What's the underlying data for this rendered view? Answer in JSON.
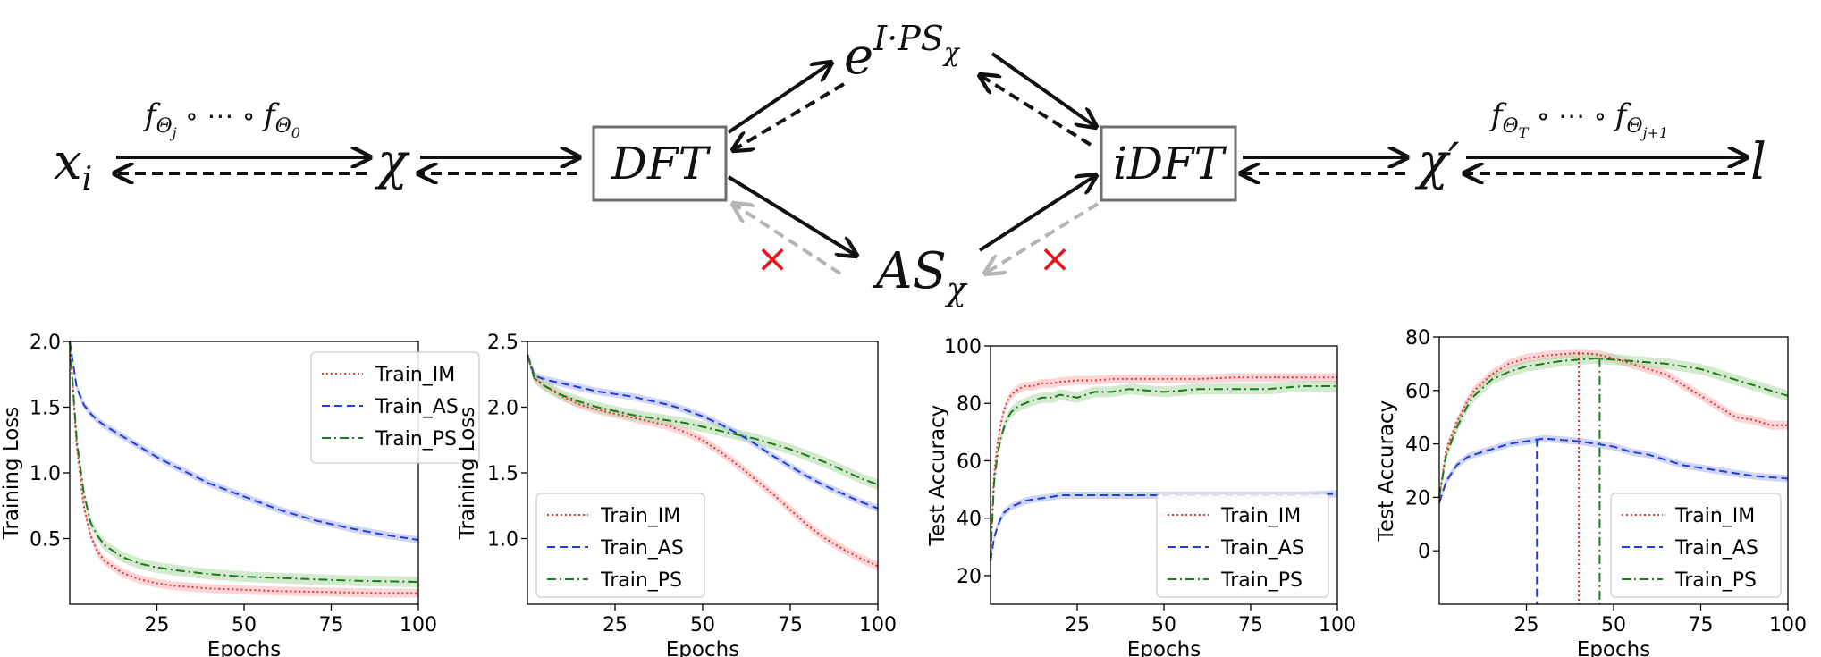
{
  "diagram": {
    "nodes": {
      "x_i": {
        "base": "x",
        "sub": "i"
      },
      "chi": {
        "base": "χ"
      },
      "dft": {
        "label": "DFT"
      },
      "exp_ps": {
        "base": "e",
        "sup": "I·PS",
        "supsub": "χ"
      },
      "as_chi": {
        "base": "AS",
        "sub": "χ"
      },
      "idft": {
        "label": "iDFT"
      },
      "chi_prime": {
        "base": "χ′"
      },
      "l": {
        "base": "l"
      }
    },
    "left_func": {
      "f": "f",
      "sub1": "Θ",
      "subsub1": "j",
      "mid": " ∘ ⋯ ∘ ",
      "sub2": "Θ",
      "subsub2": "0"
    },
    "right_func": {
      "f": "f",
      "sub1": "Θ",
      "subsub1": "T",
      "mid": " ∘ ⋯ ∘ ",
      "sub2": "Θ",
      "subsub2": "j+1"
    },
    "blocked_mark": "×",
    "colors": {
      "arrow": "#111111",
      "blocked": "#b5b5b5",
      "cross": "#e8141b",
      "box_border": "#6e6e6e"
    }
  },
  "series_styles": [
    {
      "name": "Train_IM",
      "color": "#e8332f",
      "dash": "2,3",
      "band": "#f7b3b8"
    },
    {
      "name": "Train_AS",
      "color": "#1f3fd8",
      "dash": "9,5",
      "band": "#aab2f3"
    },
    {
      "name": "Train_PS",
      "color": "#1d7a1d",
      "dash": "10,4,2,4",
      "band": "#aed8a6"
    }
  ],
  "chart_data": [
    {
      "type": "line",
      "ylabel": "Training Loss",
      "xlabel": "Epochs",
      "xlim": [
        0,
        100
      ],
      "ylim": [
        0,
        2.0
      ],
      "xticks": [
        "25",
        "50",
        "75",
        "100"
      ],
      "yticks": [
        "0.5",
        "1.0",
        "1.5",
        "2.0"
      ],
      "legend": "top-right",
      "series": [
        {
          "name": "Train_IM",
          "x": [
            0,
            2,
            4,
            6,
            8,
            10,
            15,
            20,
            25,
            30,
            40,
            50,
            60,
            70,
            80,
            90,
            100
          ],
          "values": [
            2.0,
            1.2,
            0.75,
            0.52,
            0.4,
            0.33,
            0.24,
            0.19,
            0.16,
            0.14,
            0.12,
            0.11,
            0.1,
            0.095,
            0.09,
            0.085,
            0.085
          ]
        },
        {
          "name": "Train_AS",
          "x": [
            0,
            2,
            4,
            6,
            8,
            10,
            15,
            20,
            25,
            30,
            40,
            50,
            60,
            70,
            80,
            90,
            100
          ],
          "values": [
            2.0,
            1.65,
            1.52,
            1.45,
            1.4,
            1.36,
            1.28,
            1.2,
            1.12,
            1.05,
            0.92,
            0.82,
            0.72,
            0.64,
            0.58,
            0.53,
            0.49
          ]
        },
        {
          "name": "Train_PS",
          "x": [
            0,
            2,
            4,
            6,
            8,
            10,
            15,
            20,
            25,
            30,
            40,
            50,
            60,
            70,
            80,
            90,
            100
          ],
          "values": [
            2.0,
            1.25,
            0.85,
            0.62,
            0.52,
            0.45,
            0.36,
            0.31,
            0.28,
            0.26,
            0.23,
            0.21,
            0.2,
            0.19,
            0.18,
            0.175,
            0.17
          ]
        }
      ]
    },
    {
      "type": "line",
      "ylabel": "Training Loss",
      "xlabel": "Epochs",
      "xlim": [
        0,
        100
      ],
      "ylim": [
        0.5,
        2.5
      ],
      "xticks": [
        "25",
        "50",
        "75",
        "100"
      ],
      "yticks": [
        "1.0",
        "1.5",
        "2.0",
        "2.5"
      ],
      "legend": "bottom-left",
      "series": [
        {
          "name": "Train_IM",
          "x": [
            0,
            2,
            5,
            10,
            15,
            20,
            25,
            30,
            35,
            40,
            45,
            50,
            55,
            60,
            65,
            70,
            75,
            80,
            85,
            90,
            95,
            100
          ],
          "values": [
            2.4,
            2.22,
            2.16,
            2.08,
            2.02,
            1.98,
            1.95,
            1.92,
            1.89,
            1.86,
            1.81,
            1.75,
            1.66,
            1.56,
            1.45,
            1.34,
            1.22,
            1.1,
            1.0,
            0.92,
            0.85,
            0.79
          ]
        },
        {
          "name": "Train_AS",
          "x": [
            0,
            2,
            5,
            10,
            15,
            20,
            25,
            30,
            35,
            40,
            45,
            50,
            55,
            60,
            65,
            70,
            75,
            80,
            85,
            90,
            95,
            100
          ],
          "values": [
            2.4,
            2.24,
            2.21,
            2.18,
            2.15,
            2.12,
            2.1,
            2.08,
            2.05,
            2.02,
            1.98,
            1.93,
            1.87,
            1.8,
            1.72,
            1.63,
            1.55,
            1.47,
            1.4,
            1.34,
            1.28,
            1.23
          ]
        },
        {
          "name": "Train_PS",
          "x": [
            0,
            2,
            5,
            10,
            15,
            20,
            25,
            30,
            35,
            40,
            45,
            50,
            55,
            60,
            65,
            70,
            75,
            80,
            85,
            90,
            95,
            100
          ],
          "values": [
            2.4,
            2.22,
            2.16,
            2.09,
            2.04,
            2.0,
            1.97,
            1.94,
            1.92,
            1.9,
            1.88,
            1.85,
            1.82,
            1.79,
            1.76,
            1.72,
            1.68,
            1.63,
            1.58,
            1.52,
            1.46,
            1.41
          ]
        }
      ]
    },
    {
      "type": "line",
      "ylabel": "Test Accuracy",
      "xlabel": "Epochs",
      "xlim": [
        0,
        100
      ],
      "ylim": [
        10,
        100
      ],
      "xticks": [
        "25",
        "50",
        "75",
        "100"
      ],
      "yticks": [
        "20",
        "40",
        "60",
        "80",
        "100"
      ],
      "legend": "bottom-right",
      "series": [
        {
          "name": "Train_IM",
          "x": [
            0,
            1,
            2,
            3,
            4,
            5,
            6,
            8,
            10,
            12,
            15,
            18,
            20,
            25,
            30,
            35,
            40,
            50,
            60,
            70,
            80,
            90,
            100
          ],
          "values": [
            27,
            55,
            66,
            73,
            78,
            81,
            83,
            85,
            86,
            86,
            87,
            87,
            87.5,
            88,
            88,
            88.5,
            88.5,
            88.5,
            88.5,
            89,
            89,
            89,
            89
          ]
        },
        {
          "name": "Train_AS",
          "x": [
            0,
            1,
            2,
            3,
            4,
            5,
            6,
            8,
            10,
            12,
            15,
            18,
            20,
            25,
            30,
            35,
            40,
            50,
            60,
            70,
            80,
            90,
            100
          ],
          "values": [
            25,
            33,
            37,
            40,
            42,
            43,
            44,
            45,
            46,
            46.5,
            47,
            47.5,
            48,
            48,
            48,
            48,
            48,
            48,
            48,
            48,
            48,
            48,
            48.5
          ]
        },
        {
          "name": "Train_PS",
          "x": [
            0,
            1,
            2,
            3,
            4,
            5,
            6,
            8,
            10,
            12,
            15,
            18,
            20,
            25,
            30,
            35,
            40,
            50,
            60,
            70,
            80,
            90,
            100
          ],
          "values": [
            26,
            52,
            62,
            68,
            72,
            75,
            77,
            79,
            80,
            81,
            82,
            82,
            83,
            82,
            84,
            84,
            85,
            84,
            85,
            85,
            85,
            86,
            86
          ]
        }
      ]
    },
    {
      "type": "line",
      "ylabel": "Test Accuracy",
      "xlabel": "Epochs",
      "xlim": [
        0,
        100
      ],
      "ylim": [
        -20,
        80
      ],
      "xticks": [
        "25",
        "50",
        "75",
        "100"
      ],
      "yticks": [
        "0",
        "20",
        "40",
        "60",
        "80"
      ],
      "legend": "bottom-right",
      "vlines": [
        {
          "series": "Train_AS",
          "x": 28,
          "y": 42
        },
        {
          "series": "Train_IM",
          "x": 40,
          "y": 74
        },
        {
          "series": "Train_PS",
          "x": 46,
          "y": 72
        }
      ],
      "series": [
        {
          "name": "Train_IM",
          "x": [
            0,
            2,
            5,
            8,
            10,
            15,
            20,
            25,
            30,
            35,
            40,
            45,
            50,
            55,
            60,
            65,
            70,
            75,
            80,
            85,
            90,
            95,
            100
          ],
          "values": [
            20,
            38,
            48,
            56,
            60,
            66,
            70,
            72,
            73,
            73.5,
            74,
            73.5,
            72,
            70,
            68,
            66,
            62,
            58,
            54,
            50,
            49,
            47,
            47
          ]
        },
        {
          "name": "Train_AS",
          "x": [
            0,
            2,
            5,
            8,
            10,
            15,
            20,
            25,
            30,
            35,
            40,
            45,
            50,
            55,
            60,
            65,
            70,
            75,
            80,
            85,
            90,
            95,
            100
          ],
          "values": [
            18,
            26,
            32,
            35,
            36,
            38,
            40,
            41,
            42,
            41.5,
            41,
            40,
            39,
            37,
            36,
            34,
            32,
            31,
            30,
            29,
            28,
            27.5,
            27
          ]
        },
        {
          "name": "Train_PS",
          "x": [
            0,
            2,
            5,
            8,
            10,
            15,
            20,
            25,
            30,
            35,
            40,
            45,
            50,
            55,
            60,
            65,
            70,
            75,
            80,
            85,
            90,
            95,
            100
          ],
          "values": [
            20,
            36,
            46,
            54,
            58,
            64,
            67,
            69,
            70,
            71,
            71.5,
            72,
            71.5,
            71,
            70.5,
            70,
            69,
            68,
            66,
            64,
            62,
            60,
            58
          ]
        }
      ]
    }
  ]
}
